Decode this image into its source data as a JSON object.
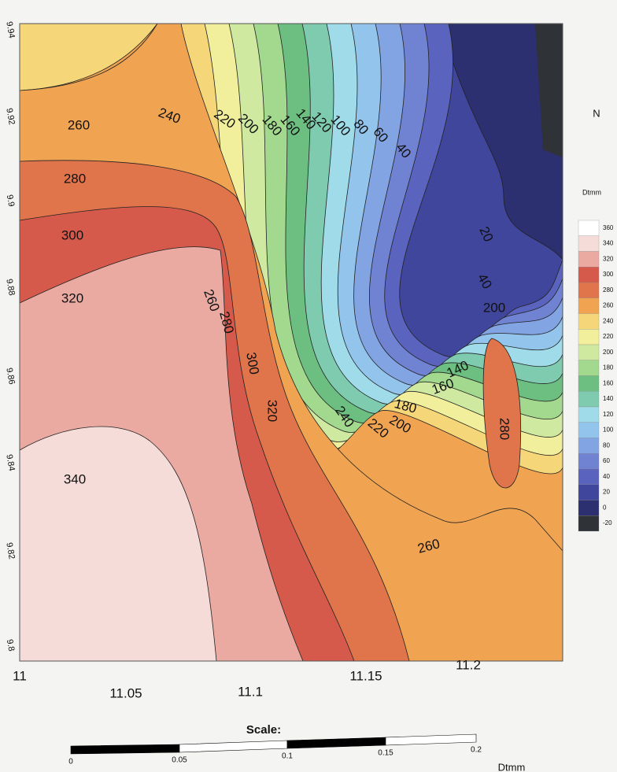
{
  "north": "N",
  "legend": {
    "title": "Dtmm",
    "items": [
      {
        "label": "360",
        "color": "#ffffff"
      },
      {
        "label": "340",
        "color": "#f6dcd8"
      },
      {
        "label": "320",
        "color": "#eaaaa2"
      },
      {
        "label": "300",
        "color": "#d65a4c"
      },
      {
        "label": "280",
        "color": "#e0744a"
      },
      {
        "label": "260",
        "color": "#f0a452"
      },
      {
        "label": "240",
        "color": "#f5d77a"
      },
      {
        "label": "220",
        "color": "#f2ef9c"
      },
      {
        "label": "200",
        "color": "#cfe9a0"
      },
      {
        "label": "180",
        "color": "#a3d98f"
      },
      {
        "label": "160",
        "color": "#6cbf80"
      },
      {
        "label": "140",
        "color": "#7fcbb0"
      },
      {
        "label": "120",
        "color": "#9fdbe8"
      },
      {
        "label": "100",
        "color": "#93c4ec"
      },
      {
        "label": "80",
        "color": "#83a4e2"
      },
      {
        "label": "60",
        "color": "#7082d2"
      },
      {
        "label": "40",
        "color": "#5a63bd"
      },
      {
        "label": "20",
        "color": "#40469c"
      },
      {
        "label": "0",
        "color": "#2c2f70"
      },
      {
        "label": "-20",
        "color": "#2f3338"
      }
    ]
  },
  "x_ticks": [
    "11",
    "11.05",
    "11.1",
    "11.15",
    "11.2"
  ],
  "y_ticks": [
    "9.94",
    "9.92",
    "9.9",
    "9.88",
    "9.86",
    "9.84",
    "9.82",
    "9.8"
  ],
  "contour_labels": [
    "260",
    "280",
    "300",
    "320",
    "340",
    "240",
    "220",
    "200",
    "180",
    "160",
    "140",
    "120",
    "100",
    "80",
    "60",
    "40",
    "20",
    "40",
    "200",
    "260",
    "280",
    "300",
    "320",
    "240",
    "220",
    "200",
    "180",
    "160",
    "140",
    "280",
    "260"
  ],
  "scale": {
    "title": "Scale:",
    "ticks": [
      "0",
      "0.05",
      "0.1",
      "0.15",
      "0.2"
    ]
  },
  "caption": "Dtmm"
}
